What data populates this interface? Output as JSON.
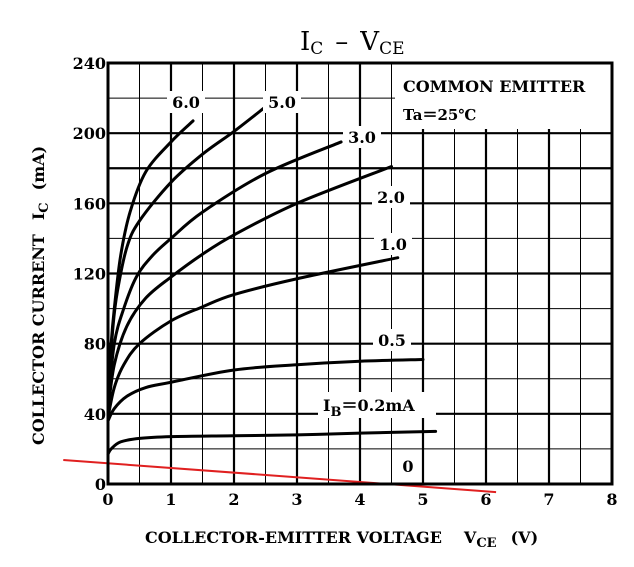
{
  "chart_data": {
    "type": "line",
    "title": "IC – VCE",
    "title_parts": {
      "main1": "I",
      "sub1": "C",
      "dash": "–",
      "main2": "V",
      "sub2": "CE"
    },
    "xlabel": "COLLECTOR-EMITTER VOLTAGE",
    "xlabel_symbol": {
      "main": "V",
      "sub": "CE",
      "unit": "(V)"
    },
    "ylabel": "COLLECTOR CURRENT",
    "ylabel_symbol": {
      "main": "I",
      "sub": "C",
      "unit": "(mA)"
    },
    "xlim": [
      0,
      8
    ],
    "ylim": [
      0,
      240
    ],
    "xticks": [
      "0",
      "1",
      "2",
      "3",
      "4",
      "5",
      "6",
      "7",
      "8"
    ],
    "yticks": [
      "0",
      "40",
      "80",
      "120",
      "160",
      "200",
      "240"
    ],
    "grid": true,
    "legend_box": {
      "line1": "COMMON EMITTER",
      "line2": "Ta＝25℃",
      "placement": "top-right"
    },
    "series": [
      {
        "name": "6.0",
        "label": "6.0",
        "x": [
          0,
          0.05,
          0.1,
          0.2,
          0.35,
          0.6,
          1.0,
          1.35
        ],
        "y": [
          50,
          80,
          100,
          130,
          155,
          178,
          195,
          207
        ]
      },
      {
        "name": "5.0",
        "label": "5.0",
        "x": [
          0,
          0.08,
          0.15,
          0.3,
          0.5,
          1.0,
          1.5,
          2.0,
          2.5
        ],
        "y": [
          50,
          90,
          110,
          135,
          150,
          172,
          188,
          201,
          215
        ]
      },
      {
        "name": "3.0",
        "label": "3.0",
        "x": [
          0,
          0.1,
          0.25,
          0.45,
          0.7,
          1.0,
          1.5,
          2.5,
          3.7
        ],
        "y": [
          45,
          80,
          100,
          118,
          130,
          140,
          155,
          177,
          195
        ]
      },
      {
        "name": "2.0",
        "label": "2.0",
        "x": [
          0,
          0.1,
          0.3,
          0.6,
          1.0,
          1.5,
          2.0,
          3.0,
          4.5
        ],
        "y": [
          42,
          68,
          90,
          106,
          118,
          131,
          142,
          160,
          181
        ]
      },
      {
        "name": "1.0",
        "label": "1.0",
        "x": [
          0,
          0.1,
          0.25,
          0.5,
          1.0,
          1.5,
          2.0,
          3.0,
          4.6
        ],
        "y": [
          38,
          55,
          68,
          80,
          93,
          101,
          108,
          117,
          129
        ]
      },
      {
        "name": "0.5",
        "label": "0.5",
        "x": [
          0,
          0.1,
          0.3,
          0.6,
          1.0,
          2.0,
          3.0,
          4.0,
          5.0
        ],
        "y": [
          36,
          43,
          50,
          55,
          58,
          65,
          68,
          70,
          71
        ]
      },
      {
        "name": "0.2",
        "label": "IB＝0.2mA",
        "label_parts": {
          "main": "I",
          "sub": "B",
          "rest": "＝0.2mA"
        },
        "x": [
          0,
          0.05,
          0.2,
          0.5,
          1.0,
          2.0,
          3.0,
          4.0,
          5.2
        ],
        "y": [
          17,
          20,
          24,
          26,
          27,
          27.5,
          28,
          29,
          30
        ]
      },
      {
        "name": "0",
        "label": "0",
        "x": [
          0,
          5
        ],
        "y": [
          0,
          0
        ]
      }
    ],
    "annotation_line": {
      "color": "#e02020",
      "x": [
        -0.71,
        6.16
      ],
      "y": [
        13.7,
        -4.6
      ]
    }
  }
}
